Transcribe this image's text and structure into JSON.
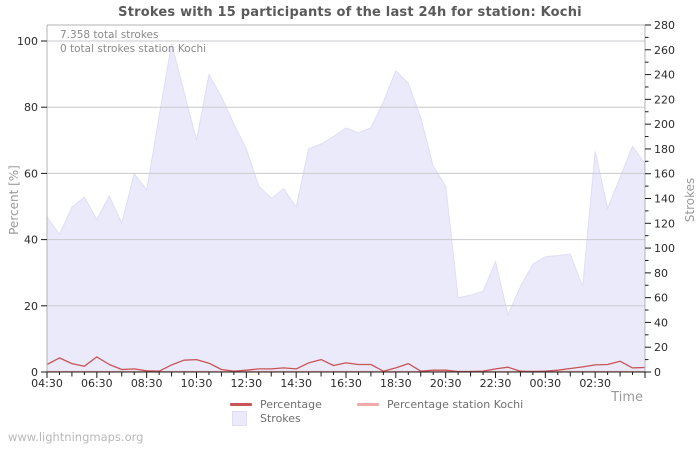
{
  "page": {
    "watermark": "www.lightningmaps.org"
  },
  "annotations": {
    "total_strokes": "7.358 total strokes",
    "station_total": "0 total strokes station Kochi"
  },
  "colors": {
    "percentage_line": "#c95458",
    "station_line": "#f2aba9",
    "strokes_area_fill": "#eaeafa",
    "strokes_area_edge": "#dedef6",
    "grid": "#c9c9cd",
    "frame": "#b3b3b3",
    "axis": "#1a1a1a"
  },
  "chart_data": {
    "type": "area",
    "title": "Strokes with 15 participants of the last 24h for station: Kochi",
    "grid": true,
    "legend_position": "bottom",
    "x_axis": {
      "label": "Time",
      "interval_minutes": 30,
      "tick_labels": [
        "04:30",
        "06:30",
        "08:30",
        "10:30",
        "12:30",
        "14:30",
        "16:30",
        "18:30",
        "20:30",
        "22:30",
        "00:30",
        "02:30"
      ]
    },
    "y_left": {
      "label": "Percent  [%]",
      "min": 0,
      "max": 100,
      "tick_step": 20
    },
    "y_right": {
      "label": "Strokes",
      "min": 0,
      "max": 280,
      "tick_step": 20,
      "minor_step": 10
    },
    "times": [
      "04:30",
      "05:00",
      "05:30",
      "06:00",
      "06:30",
      "07:00",
      "07:30",
      "08:00",
      "08:30",
      "09:00",
      "09:30",
      "10:00",
      "10:30",
      "11:00",
      "11:30",
      "12:00",
      "12:30",
      "13:00",
      "13:30",
      "14:00",
      "14:30",
      "15:00",
      "15:30",
      "16:00",
      "16:30",
      "17:00",
      "17:30",
      "18:00",
      "18:30",
      "19:00",
      "19:30",
      "20:00",
      "20:30",
      "21:00",
      "21:30",
      "22:00",
      "22:30",
      "23:00",
      "23:30",
      "00:00",
      "00:30",
      "01:00",
      "01:30",
      "02:00",
      "02:30",
      "03:00",
      "03:30",
      "04:00",
      "04:30"
    ],
    "series": [
      {
        "name": "Strokes",
        "axis": "right",
        "style": "area",
        "values": [
          125,
          111,
          133,
          141,
          123,
          142,
          120,
          160,
          147,
          206,
          265,
          226,
          187,
          240,
          222,
          200,
          180,
          150,
          140,
          148,
          133,
          180,
          184,
          190,
          197,
          193,
          197,
          218,
          243,
          233,
          205,
          166,
          150,
          60,
          62,
          65,
          89,
          46,
          69,
          87,
          93,
          94,
          95,
          69,
          178,
          132,
          157,
          182,
          168
        ]
      },
      {
        "name": "Percentage",
        "axis": "left",
        "style": "line",
        "values": [
          2.1,
          4.1,
          2.4,
          1.6,
          4.4,
          2.1,
          0.6,
          0.8,
          0.2,
          0.1,
          2.0,
          3.4,
          3.6,
          2.5,
          0.6,
          0.1,
          0.4,
          0.8,
          0.8,
          1.1,
          0.8,
          2.6,
          3.6,
          1.8,
          2.6,
          2.1,
          2.1,
          0.1,
          1.1,
          2.4,
          0.1,
          0.4,
          0.4,
          0.0,
          0.0,
          0.1,
          0.8,
          1.3,
          0.1,
          0.0,
          0.1,
          0.4,
          0.9,
          1.4,
          2.0,
          2.1,
          3.1,
          1.1,
          1.2
        ]
      },
      {
        "name": "Percentage station Kochi",
        "axis": "left",
        "style": "line",
        "values": [
          0,
          0,
          0,
          0,
          0,
          0,
          0,
          0,
          0,
          0,
          0,
          0,
          0,
          0,
          0,
          0,
          0,
          0,
          0,
          0,
          0,
          0,
          0,
          0,
          0,
          0,
          0,
          0,
          0,
          0,
          0,
          0,
          0,
          0,
          0,
          0,
          0,
          0,
          0,
          0,
          0,
          0,
          0,
          0,
          0,
          0,
          0,
          0,
          0
        ]
      }
    ],
    "legend": {
      "percentage": "Percentage",
      "station": "Percentage station Kochi",
      "strokes": "Strokes"
    }
  }
}
